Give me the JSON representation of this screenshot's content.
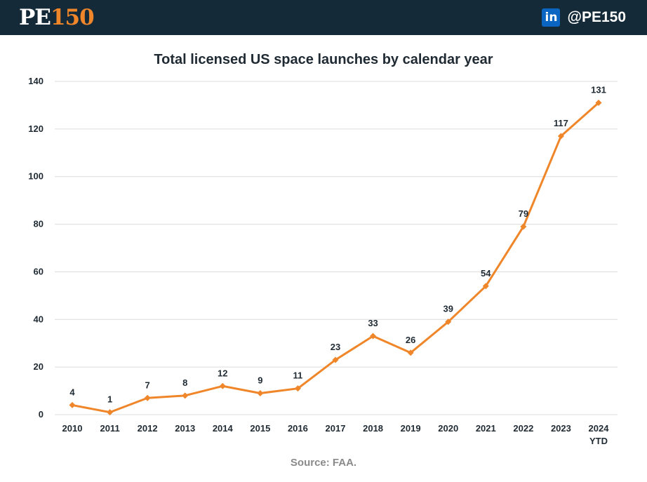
{
  "header": {
    "logo_pe": "PE",
    "logo_num": "150",
    "social_icon": "linkedin-icon",
    "social_icon_text": "in",
    "social_handle": "@PE150"
  },
  "footer": {
    "source": "Source: FAA."
  },
  "colors": {
    "header_bg": "#142a38",
    "accent": "#f0862a",
    "line": "#f0862a"
  },
  "chart_data": {
    "type": "line",
    "title": "Total licensed US space launches by calendar year",
    "xlabel": "",
    "ylabel": "",
    "categories": [
      "2010",
      "2011",
      "2012",
      "2013",
      "2014",
      "2015",
      "2016",
      "2017",
      "2018",
      "2019",
      "2020",
      "2021",
      "2022",
      "2023",
      "2024 YTD"
    ],
    "series": [
      {
        "values": [
          4,
          1,
          7,
          8,
          12,
          9,
          11,
          23,
          33,
          26,
          39,
          54,
          79,
          117,
          131
        ]
      }
    ],
    "data_labels": [
      "4",
      "1",
      "7",
      "8",
      "12",
      "9",
      "11",
      "23",
      "33",
      "26",
      "39",
      "54",
      "79",
      "117",
      "131"
    ],
    "yticks": [
      0,
      20,
      40,
      60,
      80,
      100,
      120,
      140
    ],
    "ylim": [
      0,
      140
    ],
    "grid": true,
    "marker": "diamond"
  }
}
